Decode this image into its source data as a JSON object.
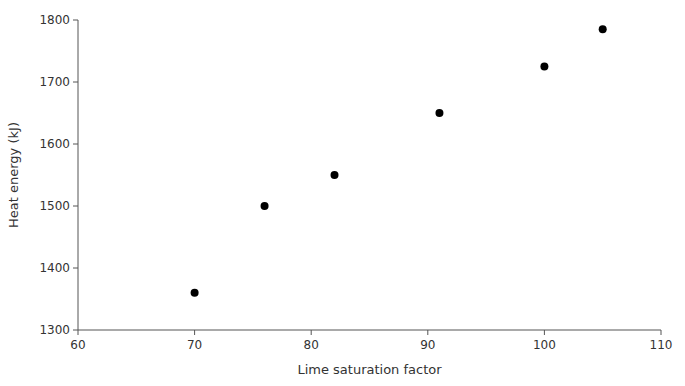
{
  "chart_data": {
    "type": "scatter",
    "x": [
      70,
      76,
      82,
      91,
      100,
      105
    ],
    "y": [
      1360,
      1500,
      1550,
      1650,
      1725,
      1785
    ],
    "xlabel": "Lime saturation factor",
    "ylabel": "Heat energy (kJ)",
    "xlim": [
      60,
      110
    ],
    "ylim": [
      1300,
      1800
    ],
    "xticks": [
      60,
      70,
      80,
      90,
      100,
      110
    ],
    "yticks": [
      1300,
      1400,
      1500,
      1600,
      1700,
      1800
    ],
    "color": "black",
    "grid": false
  }
}
